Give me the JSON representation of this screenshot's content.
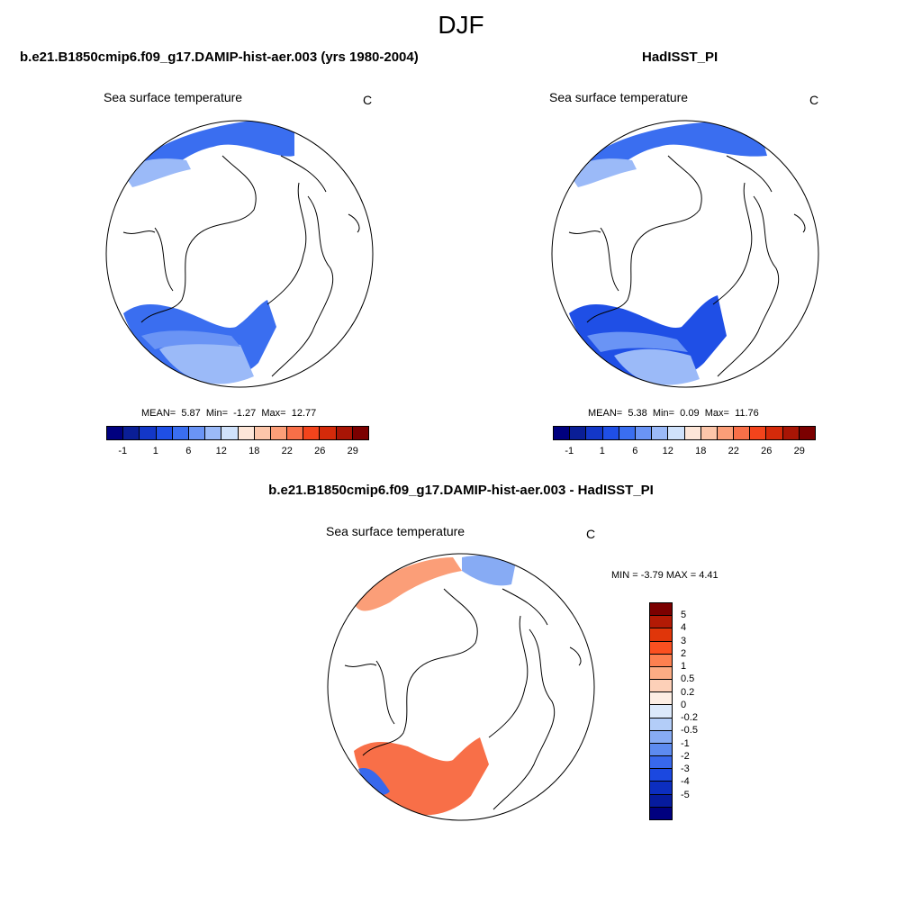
{
  "season": "DJF",
  "units": "C",
  "variable": "Sea surface temperature",
  "panels": {
    "model": {
      "title": "b.e21.B1850cmip6.f09_g17.DAMIP-hist-aer.003 (yrs 1980-2004)",
      "stats": {
        "mean_label": "MEAN=",
        "mean": "5.87",
        "min_label": "Min=",
        "min": "-1.27",
        "max_label": "Max=",
        "max": "12.77"
      }
    },
    "obs": {
      "title": "HadISST_PI",
      "stats": {
        "mean_label": "MEAN=",
        "mean": "5.38",
        "min_label": "Min=",
        "min": "0.09",
        "max_label": "Max=",
        "max": "11.76"
      }
    },
    "diff": {
      "title": "b.e21.B1850cmip6.f09_g17.DAMIP-hist-aer.003 - HadISST_PI",
      "minmax": "MIN =  -3.79 MAX =   4.41"
    }
  },
  "abs_colorbar": {
    "colors": [
      "#00007f",
      "#0a1e96",
      "#1337c8",
      "#1f4fe6",
      "#3a6ef0",
      "#6a94f5",
      "#9bbaf8",
      "#d0e2fb",
      "#fde6d8",
      "#fcc6aa",
      "#fb9e78",
      "#f86f48",
      "#f2441c",
      "#d42a0a",
      "#a81505",
      "#7b0000"
    ],
    "tick_labels": [
      "-1",
      "1",
      "6",
      "12",
      "18",
      "22",
      "26",
      "29"
    ]
  },
  "diff_colorbar": {
    "colors": [
      "#7b0000",
      "#b31a05",
      "#e0360a",
      "#fb5020",
      "#fd8050",
      "#fcac84",
      "#fdd0b8",
      "#fdeee4",
      "#dce9fb",
      "#b3cdf8",
      "#87abf4",
      "#5d8bf0",
      "#3868ec",
      "#1b48e0",
      "#0c2ec0",
      "#061b9e",
      "#00007f"
    ],
    "tick_labels": [
      "5",
      "4",
      "3",
      "2",
      "1",
      "0.5",
      "0.2",
      "0",
      "-0.2",
      "-0.5",
      "-1",
      "-2",
      "-3",
      "-4",
      "-5"
    ]
  }
}
